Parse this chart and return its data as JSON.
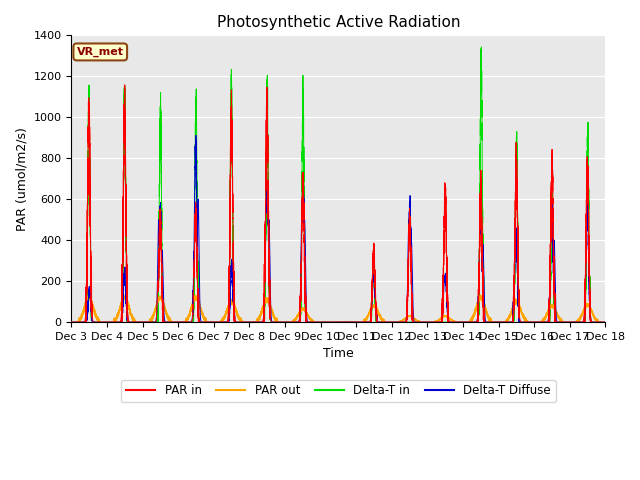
{
  "title": "Photosynthetic Active Radiation",
  "ylabel": "PAR (umol/m2/s)",
  "xlabel": "Time",
  "xlim_days": [
    3,
    18
  ],
  "ylim": [
    0,
    1400
  ],
  "yticks": [
    0,
    200,
    400,
    600,
    800,
    1000,
    1200,
    1400
  ],
  "colors": {
    "PAR_in": "#FF0000",
    "PAR_out": "#FFA500",
    "Delta_T_in": "#00DD00",
    "Delta_T_Diffuse": "#0000CC"
  },
  "legend_labels": [
    "PAR in",
    "PAR out",
    "Delta-T in",
    "Delta-T Diffuse"
  ],
  "annotation_text": "VR_met",
  "bg_color": "#E8E8E8",
  "title_fontsize": 11,
  "label_fontsize": 9,
  "tick_fontsize": 8,
  "figsize": [
    6.4,
    4.8
  ],
  "dpi": 100,
  "day_data": {
    "green_peaks": [
      1100,
      1100,
      1030,
      1060,
      1100,
      1130,
      1100,
      0,
      280,
      0,
      0,
      1300,
      860,
      570,
      910
    ],
    "red_peaks": [
      1020,
      1010,
      520,
      530,
      1010,
      1040,
      700,
      0,
      350,
      490,
      630,
      640,
      760,
      760,
      750
    ],
    "orange_peaks": [
      120,
      120,
      120,
      120,
      100,
      110,
      65,
      0,
      80,
      30,
      30,
      120,
      100,
      80,
      85
    ],
    "blue_peaks": [
      160,
      250,
      530,
      840,
      270,
      650,
      650,
      0,
      220,
      550,
      220,
      510,
      420,
      560,
      550
    ]
  },
  "signal_widths": {
    "green": 0.03,
    "red": 0.035,
    "orange": 0.12,
    "blue": 0.035
  },
  "peak_offsets": {
    "green": 0.5,
    "red": 0.5,
    "orange": 0.5,
    "blue": 0.5
  }
}
